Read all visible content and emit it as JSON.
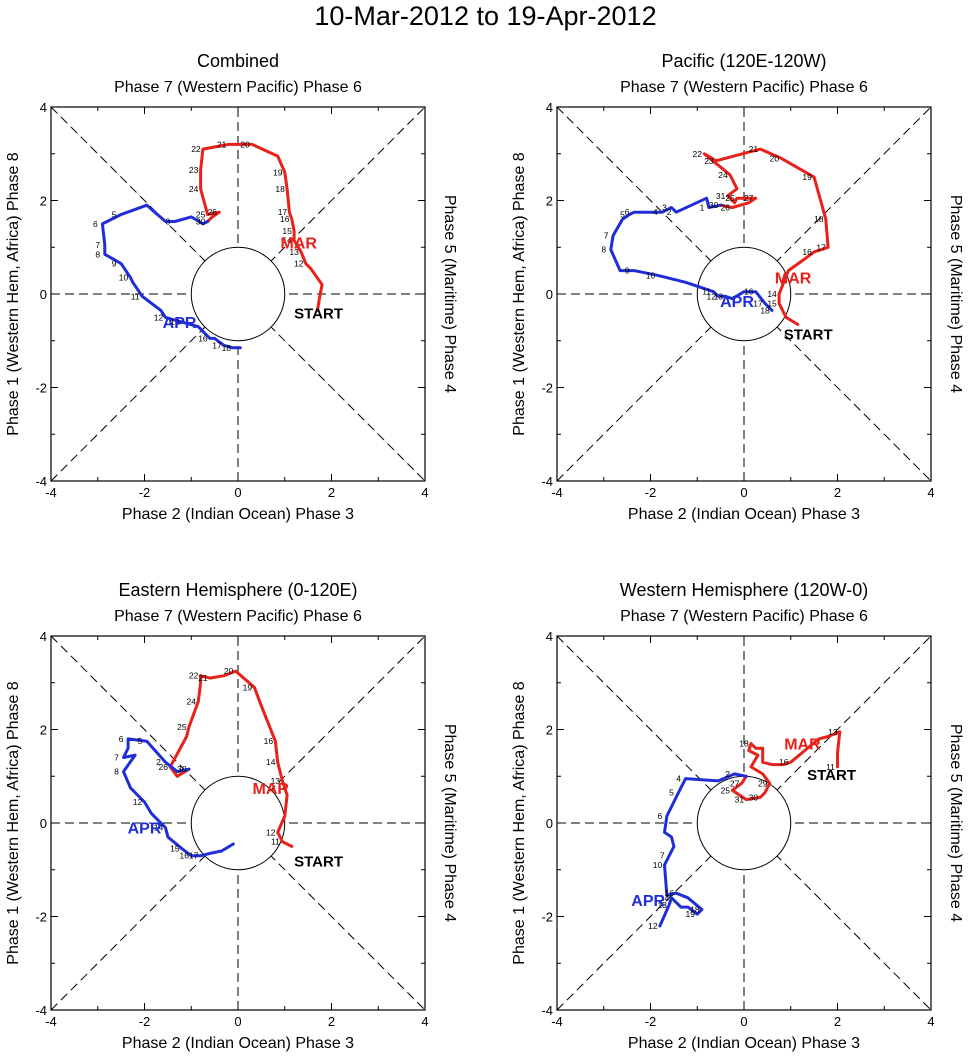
{
  "title": "10-Mar-2012 to 19-Apr-2012",
  "colors": {
    "march": "#e8211b",
    "april": "#1f2ed8",
    "axis": "#000000"
  },
  "chart_data": [
    {
      "type": "line",
      "title": "Combined",
      "top_label": "Phase 7 (Western Pacific) Phase 6",
      "bottom_label": "Phase 2 (Indian Ocean) Phase 3",
      "left_label": "Phase 1 (Western Hem, Africa) Phase 8",
      "right_label": "Phase 5 (Maritime) Phase 4",
      "xlim": [
        -4,
        4
      ],
      "ylim": [
        -4,
        4
      ],
      "ticks": [
        "-4",
        "-2",
        "0",
        "2",
        "4"
      ],
      "start_label": "START",
      "start_label_xy": [
        1.2,
        -0.4
      ],
      "month_labels": [
        {
          "text": "MAR",
          "color": "march",
          "x": 1.3,
          "y": 1.1
        },
        {
          "text": "APR",
          "color": "april",
          "x": -1.25,
          "y": -0.6
        }
      ],
      "series": [
        {
          "name": "March",
          "color": "march",
          "points": [
            [
              1.7,
              -0.35
            ],
            [
              1.75,
              -0.05
            ],
            [
              1.8,
              0.2
            ],
            [
              1.55,
              0.55
            ],
            [
              1.45,
              0.65
            ],
            [
              1.35,
              0.9
            ],
            [
              1.2,
              1.15
            ],
            [
              1.2,
              1.35
            ],
            [
              1.15,
              1.6
            ],
            [
              1.1,
              1.75
            ],
            [
              1.05,
              2.25
            ],
            [
              1.0,
              2.6
            ],
            [
              0.85,
              2.95
            ],
            [
              0.3,
              3.2
            ],
            [
              -0.2,
              3.2
            ],
            [
              -0.75,
              3.1
            ],
            [
              -0.8,
              2.65
            ],
            [
              -0.8,
              2.25
            ],
            [
              -0.65,
              1.7
            ],
            [
              -0.4,
              1.75
            ],
            [
              -0.55,
              1.65
            ],
            [
              -0.65,
              1.55
            ]
          ],
          "labels": [
            "",
            "",
            "",
            "",
            "12",
            "13",
            "14",
            "15",
            "16",
            "17",
            "18",
            "19",
            "",
            "20",
            "21",
            "22",
            "23",
            "24",
            "25",
            "26",
            "",
            "30"
          ]
        },
        {
          "name": "April",
          "color": "april",
          "points": [
            [
              -0.65,
              1.55
            ],
            [
              -0.75,
              1.5
            ],
            [
              -1.0,
              1.65
            ],
            [
              -1.35,
              1.55
            ],
            [
              -1.55,
              1.55
            ],
            [
              -1.95,
              1.9
            ],
            [
              -2.5,
              1.7
            ],
            [
              -2.9,
              1.5
            ],
            [
              -2.85,
              1.05
            ],
            [
              -2.85,
              0.85
            ],
            [
              -2.5,
              0.65
            ],
            [
              -2.3,
              0.35
            ],
            [
              -2.25,
              0.25
            ],
            [
              -2.05,
              -0.05
            ],
            [
              -1.65,
              -0.35
            ],
            [
              -1.55,
              -0.5
            ],
            [
              -1.2,
              -0.6
            ],
            [
              -0.85,
              -0.7
            ],
            [
              -0.6,
              -0.95
            ],
            [
              -0.5,
              -0.95
            ],
            [
              -0.3,
              -1.1
            ],
            [
              -0.1,
              -1.15
            ],
            [
              0.05,
              -1.15
            ]
          ],
          "labels": [
            "",
            "",
            "",
            "3",
            "",
            "",
            "5",
            "6",
            "7",
            "8",
            "9",
            "10",
            "",
            "11",
            "",
            "12",
            "13",
            "",
            "16",
            "",
            "17",
            "18",
            ""
          ]
        }
      ]
    },
    {
      "type": "line",
      "title": "Pacific (120E-120W)",
      "top_label": "Phase 7 (Western Pacific) Phase 6",
      "bottom_label": "Phase 2 (Indian Ocean) Phase 3",
      "left_label": "Phase 1 (Western Hem, Africa) Phase 8",
      "right_label": "Phase 5 (Maritime) Phase 4",
      "xlim": [
        -4,
        4
      ],
      "ylim": [
        -4,
        4
      ],
      "ticks": [
        "-4",
        "-2",
        "0",
        "2",
        "4"
      ],
      "start_label": "START",
      "start_label_xy": [
        0.85,
        -0.85
      ],
      "month_labels": [
        {
          "text": "MAR",
          "color": "march",
          "x": 1.05,
          "y": 0.35
        },
        {
          "text": "APR",
          "color": "april",
          "x": -0.15,
          "y": -0.15
        }
      ],
      "series": [
        {
          "name": "March",
          "color": "march",
          "points": [
            [
              1.15,
              -0.65
            ],
            [
              0.9,
              -0.5
            ],
            [
              0.75,
              -0.2
            ],
            [
              0.75,
              0.0
            ],
            [
              0.95,
              0.5
            ],
            [
              1.3,
              0.75
            ],
            [
              1.5,
              0.9
            ],
            [
              1.8,
              1.0
            ],
            [
              1.75,
              1.6
            ],
            [
              1.5,
              2.5
            ],
            [
              0.8,
              2.9
            ],
            [
              0.35,
              3.1
            ],
            [
              -0.6,
              2.85
            ],
            [
              -0.85,
              3.0
            ],
            [
              -0.3,
              2.55
            ],
            [
              -0.15,
              2.25
            ],
            [
              -0.35,
              2.1
            ],
            [
              -0.2,
              1.95
            ],
            [
              -0.15,
              2.05
            ],
            [
              0.25,
              2.05
            ],
            [
              0.1,
              1.95
            ],
            [
              -0.25,
              1.85
            ],
            [
              -0.5,
              1.9
            ]
          ],
          "labels": [
            "",
            "",
            "15",
            "14",
            "",
            "",
            "16",
            "17",
            "18",
            "19",
            "20",
            "21",
            "23",
            "22",
            "24",
            "",
            "31",
            "",
            "25",
            "27",
            "",
            "26",
            "30"
          ]
        },
        {
          "name": "April",
          "color": "april",
          "points": [
            [
              -0.5,
              1.9
            ],
            [
              -0.75,
              1.85
            ],
            [
              -0.8,
              2.05
            ],
            [
              -1.45,
              1.75
            ],
            [
              -1.55,
              1.85
            ],
            [
              -1.75,
              1.75
            ],
            [
              -2.35,
              1.75
            ],
            [
              -2.45,
              1.7
            ],
            [
              -2.6,
              1.6
            ],
            [
              -2.8,
              1.25
            ],
            [
              -2.85,
              0.95
            ],
            [
              -2.65,
              0.5
            ],
            [
              -2.35,
              0.5
            ],
            [
              -1.85,
              0.4
            ],
            [
              -1.25,
              0.25
            ],
            [
              -0.65,
              0.05
            ],
            [
              -0.55,
              -0.05
            ],
            [
              -0.4,
              -0.05
            ],
            [
              -0.25,
              -0.1
            ],
            [
              0.0,
              0.05
            ],
            [
              0.25,
              0.05
            ],
            [
              0.45,
              -0.2
            ],
            [
              0.6,
              -0.35
            ]
          ],
          "labels": [
            "",
            "1",
            "",
            "2",
            "3",
            "4",
            "6",
            "5",
            "",
            "7",
            "8",
            "",
            "9",
            "10",
            "",
            "11",
            "12",
            "13",
            "",
            "",
            "16",
            "17",
            "18"
          ]
        }
      ]
    },
    {
      "type": "line",
      "title": "Eastern Hemisphere (0-120E)",
      "top_label": "Phase 7 (Western Pacific) Phase 6",
      "bottom_label": "Phase 2 (Indian Ocean) Phase 3",
      "left_label": "Phase 1 (Western Hem, Africa) Phase 8",
      "right_label": "Phase 5 (Maritime) Phase 4",
      "xlim": [
        -4,
        4
      ],
      "ylim": [
        -4,
        4
      ],
      "ticks": [
        "-4",
        "-2",
        "0",
        "2",
        "4"
      ],
      "start_label": "START",
      "start_label_xy": [
        1.2,
        -0.8
      ],
      "month_labels": [
        {
          "text": "MAR",
          "color": "march",
          "x": 0.7,
          "y": 0.75
        },
        {
          "text": "APR",
          "color": "april",
          "x": -2.0,
          "y": -0.1
        }
      ],
      "series": [
        {
          "name": "March",
          "color": "march",
          "points": [
            [
              1.15,
              -0.5
            ],
            [
              0.95,
              -0.4
            ],
            [
              0.85,
              -0.2
            ],
            [
              1.0,
              0.15
            ],
            [
              1.05,
              0.6
            ],
            [
              0.95,
              0.9
            ],
            [
              0.85,
              1.3
            ],
            [
              0.8,
              1.75
            ],
            [
              0.5,
              2.5
            ],
            [
              0.35,
              2.9
            ],
            [
              -0.05,
              3.25
            ],
            [
              -0.3,
              3.15
            ],
            [
              -0.6,
              3.1
            ],
            [
              -0.8,
              3.15
            ],
            [
              -0.8,
              3.0
            ],
            [
              -0.85,
              2.6
            ],
            [
              -1.05,
              2.05
            ],
            [
              -1.1,
              1.85
            ],
            [
              -1.45,
              1.2
            ],
            [
              -1.3,
              1.0
            ],
            [
              -1.05,
              1.15
            ]
          ],
          "labels": [
            "",
            "11",
            "12",
            "",
            "",
            "13",
            "14",
            "16",
            "",
            "19",
            "20",
            "",
            "21",
            "22",
            "",
            "24",
            "25",
            "",
            "26",
            "",
            "30"
          ]
        },
        {
          "name": "April",
          "color": "april",
          "points": [
            [
              -1.05,
              1.15
            ],
            [
              -1.3,
              1.1
            ],
            [
              -1.55,
              1.3
            ],
            [
              -1.95,
              1.75
            ],
            [
              -2.35,
              1.8
            ],
            [
              -2.35,
              1.6
            ],
            [
              -2.45,
              1.4
            ],
            [
              -2.2,
              1.45
            ],
            [
              -2.45,
              1.1
            ],
            [
              -2.3,
              0.75
            ],
            [
              -2.0,
              0.45
            ],
            [
              -1.85,
              0.2
            ],
            [
              -1.55,
              -0.1
            ],
            [
              -1.5,
              -0.3
            ],
            [
              -1.2,
              -0.55
            ],
            [
              -1.0,
              -0.7
            ],
            [
              -0.8,
              -0.7
            ],
            [
              -0.6,
              -0.65
            ],
            [
              -0.35,
              -0.6
            ],
            [
              -0.1,
              -0.45
            ]
          ],
          "labels": [
            "",
            "",
            "2",
            "5",
            "6",
            "",
            "7",
            "",
            "8",
            "",
            "12",
            "",
            "14",
            "",
            "15",
            "16",
            "17",
            "",
            "",
            ""
          ]
        }
      ]
    },
    {
      "type": "line",
      "title": "Western Hemisphere (120W-0)",
      "top_label": "Phase 7 (Western Pacific) Phase 6",
      "bottom_label": "Phase 2 (Indian Ocean) Phase 3",
      "left_label": "Phase 1 (Western Hem, Africa) Phase 8",
      "right_label": "Phase 5 (Maritime) Phase 4",
      "xlim": [
        -4,
        4
      ],
      "ylim": [
        -4,
        4
      ],
      "ticks": [
        "-4",
        "-2",
        "0",
        "2",
        "4"
      ],
      "start_label": "START",
      "start_label_xy": [
        1.35,
        1.05
      ],
      "month_labels": [
        {
          "text": "MAR",
          "color": "march",
          "x": 1.25,
          "y": 1.7
        },
        {
          "text": "APR",
          "color": "april",
          "x": -2.05,
          "y": -1.65
        }
      ],
      "series": [
        {
          "name": "March",
          "color": "march",
          "points": [
            [
              2.0,
              1.2
            ],
            [
              2.0,
              1.5
            ],
            [
              2.05,
              1.95
            ],
            [
              1.8,
              1.85
            ],
            [
              1.6,
              1.8
            ],
            [
              1.3,
              1.55
            ],
            [
              1.0,
              1.3
            ],
            [
              0.85,
              1.25
            ],
            [
              0.6,
              1.25
            ],
            [
              0.4,
              1.3
            ],
            [
              0.4,
              1.6
            ],
            [
              0.25,
              1.6
            ],
            [
              0.15,
              1.7
            ],
            [
              0.1,
              1.55
            ],
            [
              0.3,
              1.45
            ],
            [
              0.15,
              1.2
            ],
            [
              0.4,
              1.05
            ],
            [
              0.55,
              0.85
            ],
            [
              0.45,
              0.65
            ],
            [
              0.35,
              0.55
            ],
            [
              0.05,
              0.5
            ],
            [
              -0.25,
              0.7
            ],
            [
              -0.05,
              0.85
            ],
            [
              0.05,
              1.0
            ]
          ],
          "labels": [
            "11",
            "",
            "13",
            "",
            "",
            "",
            "16",
            "",
            "",
            "",
            "",
            "",
            "18",
            "",
            "",
            "",
            "",
            "29",
            "",
            "30",
            "31",
            "25",
            "27",
            ""
          ]
        },
        {
          "name": "April",
          "color": "april",
          "points": [
            [
              0.05,
              1.0
            ],
            [
              -0.2,
              1.05
            ],
            [
              -0.55,
              0.9
            ],
            [
              -1.25,
              0.95
            ],
            [
              -1.4,
              0.65
            ],
            [
              -1.65,
              0.15
            ],
            [
              -1.7,
              -0.2
            ],
            [
              -1.55,
              -0.3
            ],
            [
              -1.5,
              -0.5
            ],
            [
              -1.6,
              -0.7
            ],
            [
              -1.7,
              -0.9
            ],
            [
              -1.65,
              -1.55
            ],
            [
              -1.45,
              -1.5
            ],
            [
              -1.2,
              -1.6
            ],
            [
              -0.9,
              -1.85
            ],
            [
              -1.0,
              -1.95
            ],
            [
              -1.2,
              -1.8
            ],
            [
              -1.35,
              -1.8
            ],
            [
              -1.55,
              -1.6
            ],
            [
              -1.6,
              -1.75
            ],
            [
              -1.8,
              -2.2
            ]
          ],
          "labels": [
            "",
            "2",
            "",
            "4",
            "5",
            "6",
            "",
            "",
            "",
            "7",
            "10",
            "",
            "16",
            "",
            "18",
            "19",
            "",
            "",
            "14",
            "13",
            "12"
          ]
        }
      ]
    }
  ]
}
